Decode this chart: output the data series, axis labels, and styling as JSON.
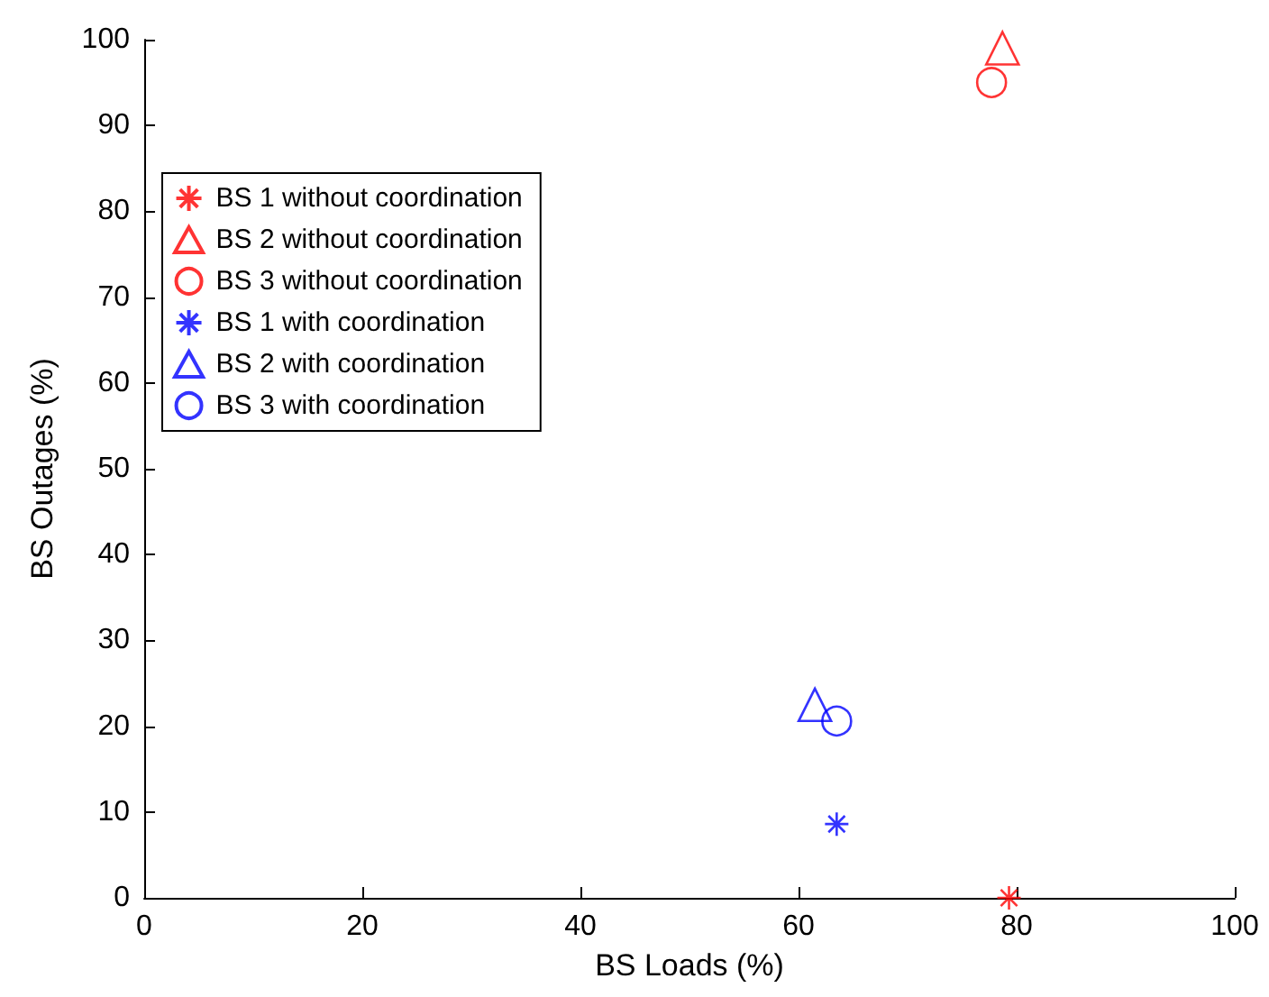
{
  "chart_data": {
    "type": "scatter",
    "xlabel": "BS Loads (%)",
    "ylabel": "BS Outages (%)",
    "xlim": [
      0,
      100
    ],
    "xticks": [
      0,
      20,
      40,
      60,
      80,
      100
    ],
    "ylim": [
      0,
      100
    ],
    "yticks": [
      0,
      10,
      20,
      30,
      40,
      50,
      60,
      70,
      80,
      90,
      100
    ],
    "grid": false,
    "legend": "top left",
    "series": [
      {
        "name": "BS 1 without coordination",
        "color": "#ff0000",
        "marker": "cross",
        "x": [
          79.3
        ],
        "values": [
          0
        ]
      },
      {
        "name": "BS 2 without coordination",
        "color": "#ff0000",
        "marker": "triangle",
        "x": [
          78.7
        ],
        "values": [
          99
        ]
      },
      {
        "name": "BS 3 without coordination",
        "color": "#ff0000",
        "marker": "circle",
        "x": [
          77.7
        ],
        "values": [
          95
        ]
      },
      {
        "name": "BS 1 with coordination",
        "color": "#0000ff",
        "marker": "cross",
        "x": [
          63.5
        ],
        "values": [
          8.6
        ]
      },
      {
        "name": "BS 2 with coordination",
        "color": "#0000ff",
        "marker": "triangle",
        "x": [
          61.5
        ],
        "values": [
          22.5
        ]
      },
      {
        "name": "BS 3 with coordination",
        "color": "#0000ff",
        "marker": "circle",
        "x": [
          63.5
        ],
        "values": [
          20.6
        ]
      }
    ]
  }
}
